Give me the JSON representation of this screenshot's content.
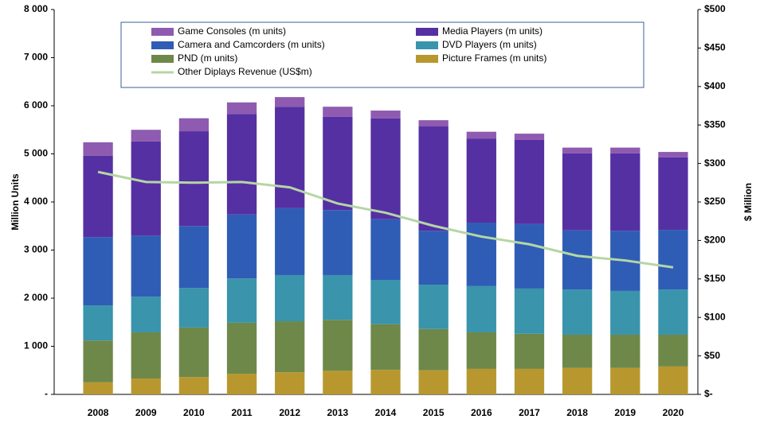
{
  "chart_data": {
    "type": "bar",
    "stacked": true,
    "categories": [
      "2008",
      "2009",
      "2010",
      "2011",
      "2012",
      "2013",
      "2014",
      "2015",
      "2016",
      "2017",
      "2018",
      "2019",
      "2020"
    ],
    "ylabel": "Million Units",
    "y2label": "$ Million",
    "ylim": [
      0,
      8000
    ],
    "yticks": [
      {
        "value": 0,
        "label": "-"
      },
      {
        "value": 1000,
        "label": "1 000"
      },
      {
        "value": 2000,
        "label": "2 000"
      },
      {
        "value": 3000,
        "label": "3 000"
      },
      {
        "value": 4000,
        "label": "4 000"
      },
      {
        "value": 5000,
        "label": "5 000"
      },
      {
        "value": 6000,
        "label": "6 000"
      },
      {
        "value": 7000,
        "label": "7 000"
      },
      {
        "value": 8000,
        "label": "8 000"
      }
    ],
    "y2lim": [
      0,
      500
    ],
    "y2ticks": [
      {
        "value": 0,
        "label": "$-"
      },
      {
        "value": 50,
        "label": "$50"
      },
      {
        "value": 100,
        "label": "$100"
      },
      {
        "value": 150,
        "label": "$150"
      },
      {
        "value": 200,
        "label": "$200"
      },
      {
        "value": 250,
        "label": "$250"
      },
      {
        "value": 300,
        "label": "$300"
      },
      {
        "value": 350,
        "label": "$350"
      },
      {
        "value": 400,
        "label": "$400"
      },
      {
        "value": 450,
        "label": "$450"
      },
      {
        "value": 500,
        "label": "$500"
      }
    ],
    "grid": false,
    "series": [
      {
        "name": "Game Consoles (m units)",
        "color": "#8e5bb0",
        "values": [
          280,
          240,
          270,
          240,
          200,
          210,
          160,
          130,
          140,
          130,
          120,
          120,
          110
        ]
      },
      {
        "name": "Media Players (m units)",
        "color": "#5530a3",
        "values": [
          1690,
          1960,
          1970,
          2090,
          2110,
          1940,
          2100,
          2170,
          1750,
          1750,
          1600,
          1610,
          1510
        ]
      },
      {
        "name": "Camera and Camcorders (m units)",
        "color": "#2f5db5",
        "values": [
          1420,
          1270,
          1290,
          1330,
          1390,
          1350,
          1260,
          1120,
          1320,
          1340,
          1230,
          1250,
          1240
        ]
      },
      {
        "name": "DVD Players (m units)",
        "color": "#3994ac",
        "values": [
          730,
          740,
          820,
          920,
          960,
          930,
          920,
          920,
          960,
          940,
          940,
          910,
          940
        ]
      },
      {
        "name": "PND (m units)",
        "color": "#6e884a",
        "values": [
          870,
          960,
          1030,
          1060,
          1060,
          1060,
          950,
          860,
          760,
          730,
          690,
          690,
          660
        ]
      },
      {
        "name": "Picture Frames (m units)",
        "color": "#b8982e",
        "values": [
          250,
          330,
          360,
          430,
          460,
          490,
          510,
          500,
          530,
          530,
          550,
          550,
          580
        ]
      },
      {
        "name": "Other Diplays Revenue (US$m)",
        "color": "#b5d6a5",
        "type": "line",
        "axis": "y2",
        "values": [
          289,
          276,
          275,
          276,
          269,
          248,
          236,
          219,
          205,
          195,
          180,
          174,
          165
        ]
      }
    ]
  }
}
